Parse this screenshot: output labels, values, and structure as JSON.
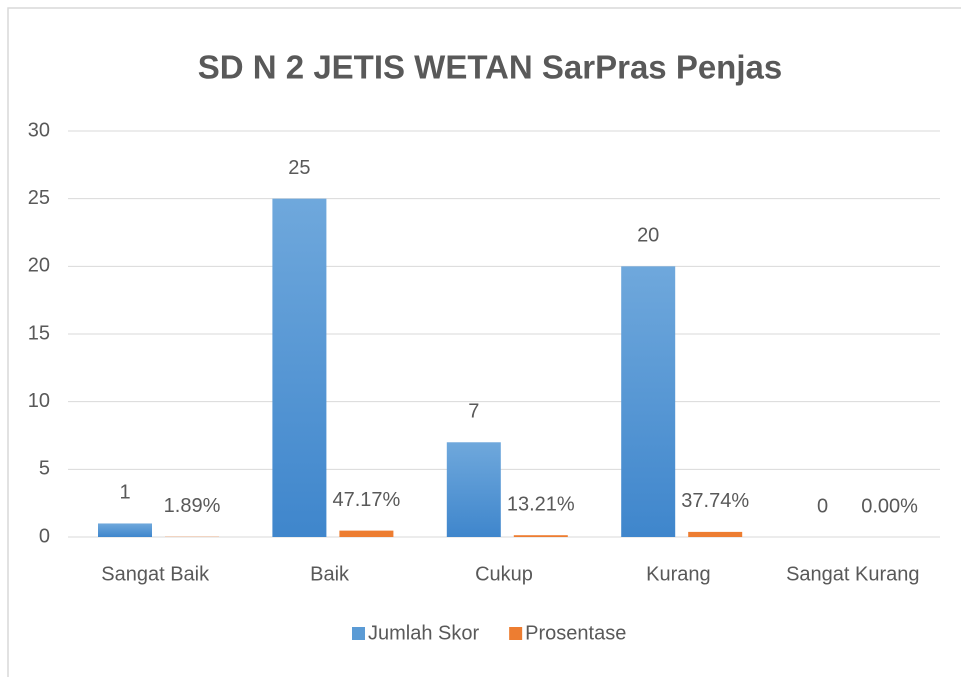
{
  "chart_data": {
    "type": "bar",
    "title": "SD N 2 JETIS WETAN SarPras Penjas",
    "categories": [
      "Sangat Baik",
      "Baik",
      "Cukup",
      "Kurang",
      "Sangat Kurang"
    ],
    "series": [
      {
        "name": "Jumlah Skor",
        "color": "#5b9bd5",
        "values": [
          1,
          25,
          7,
          20,
          0
        ]
      },
      {
        "name": "Prosentase",
        "color": "#ed7d31",
        "values": [
          0.0189,
          0.4717,
          0.1321,
          0.3774,
          0
        ],
        "value_labels": [
          "1.89%",
          "47.17%",
          "13.21%",
          "37.74%",
          "0.00%"
        ]
      }
    ],
    "ylim": [
      0,
      30
    ],
    "yticks": [
      0,
      5,
      10,
      15,
      20,
      25,
      30
    ],
    "grid": true,
    "legend": "bottom"
  }
}
